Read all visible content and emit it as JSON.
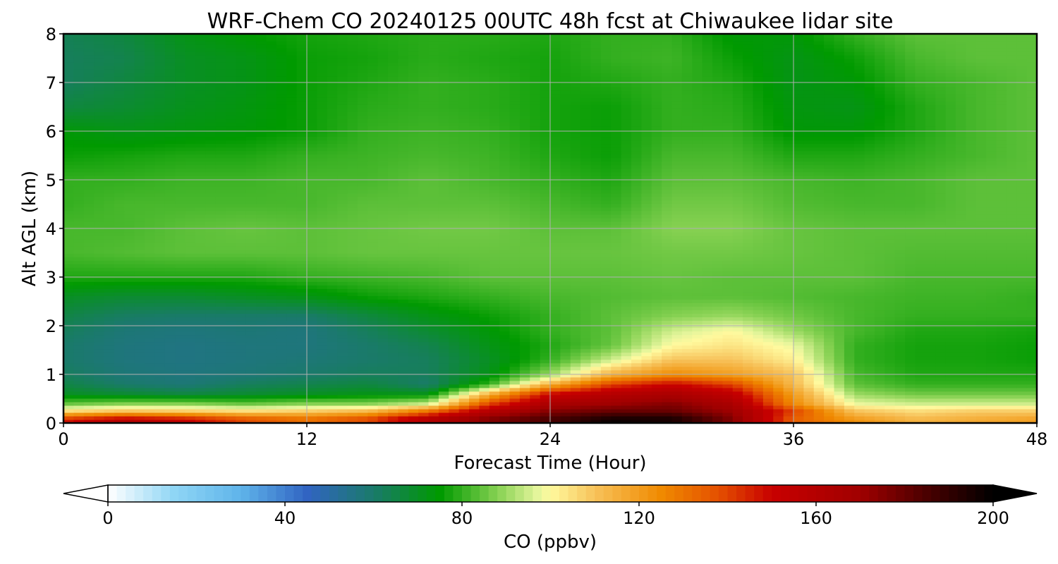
{
  "chart_data": {
    "type": "heatmap",
    "title": "WRF-Chem CO  20240125 00UTC 48h fcst at Chiwaukee lidar site",
    "xlabel": "Forecast Time (Hour)",
    "ylabel": "Alt AGL (km)",
    "xlim": [
      0,
      48
    ],
    "ylim": [
      0,
      8
    ],
    "xticks": [
      "0",
      "12",
      "24",
      "36",
      "48"
    ],
    "yticks": [
      "0",
      "1",
      "2",
      "3",
      "4",
      "5",
      "6",
      "7",
      "8"
    ],
    "grid": true,
    "x_hours": [
      0,
      3,
      6,
      9,
      12,
      15,
      18,
      21,
      24,
      27,
      30,
      33,
      36,
      39,
      42,
      45,
      48
    ],
    "z_km": [
      0,
      0.1,
      0.25,
      0.4,
      0.6,
      0.8,
      1.0,
      1.3,
      1.6,
      1.9,
      2.2,
      2.6,
      3.0,
      3.5,
      4.0,
      4.5,
      5.0,
      5.5,
      6.0,
      6.5,
      7.0,
      7.5,
      8.0
    ],
    "values_ppbv": [
      [
        150,
        165,
        155,
        140,
        130,
        138,
        160,
        175,
        185,
        200,
        195,
        175,
        135,
        125,
        115,
        118,
        120
      ],
      [
        140,
        150,
        145,
        135,
        130,
        138,
        160,
        175,
        185,
        195,
        195,
        175,
        135,
        120,
        112,
        115,
        118
      ],
      [
        105,
        110,
        108,
        105,
        108,
        112,
        130,
        160,
        175,
        180,
        180,
        170,
        140,
        110,
        105,
        108,
        108
      ],
      [
        85,
        88,
        88,
        85,
        88,
        88,
        95,
        140,
        165,
        170,
        175,
        165,
        125,
        98,
        95,
        95,
        95
      ],
      [
        70,
        68,
        66,
        68,
        70,
        72,
        72,
        115,
        150,
        160,
        165,
        155,
        120,
        90,
        86,
        86,
        86
      ],
      [
        65,
        60,
        58,
        62,
        64,
        66,
        60,
        80,
        115,
        140,
        150,
        140,
        112,
        84,
        80,
        80,
        80
      ],
      [
        62,
        58,
        57,
        58,
        60,
        62,
        62,
        72,
        90,
        115,
        125,
        120,
        110,
        82,
        78,
        78,
        78
      ],
      [
        60,
        57,
        56,
        57,
        58,
        60,
        62,
        70,
        80,
        95,
        110,
        110,
        102,
        80,
        77,
        77,
        76
      ],
      [
        60,
        57,
        56,
        57,
        57,
        60,
        64,
        72,
        78,
        85,
        100,
        104,
        98,
        80,
        77,
        77,
        76
      ],
      [
        62,
        58,
        57,
        58,
        57,
        62,
        68,
        74,
        80,
        84,
        95,
        100,
        90,
        82,
        78,
        78,
        77
      ],
      [
        65,
        61,
        60,
        60,
        60,
        66,
        72,
        76,
        80,
        84,
        88,
        90,
        86,
        82,
        80,
        80,
        80
      ],
      [
        70,
        68,
        68,
        70,
        72,
        76,
        78,
        80,
        82,
        83,
        84,
        84,
        83,
        82,
        81,
        81,
        80
      ],
      [
        78,
        78,
        78,
        78,
        80,
        81,
        82,
        84,
        84,
        84,
        85,
        84,
        84,
        84,
        82,
        82,
        82
      ],
      [
        82,
        83,
        84,
        84,
        84,
        85,
        85,
        85,
        85,
        85,
        86,
        86,
        85,
        84,
        83,
        83,
        83
      ],
      [
        82,
        82,
        84,
        85,
        84,
        85,
        86,
        86,
        84,
        84,
        88,
        88,
        85,
        84,
        84,
        84,
        84
      ],
      [
        80,
        82,
        82,
        82,
        82,
        84,
        84,
        84,
        82,
        80,
        86,
        86,
        83,
        82,
        82,
        84,
        84
      ],
      [
        80,
        80,
        81,
        81,
        82,
        82,
        84,
        82,
        80,
        78,
        84,
        84,
        82,
        81,
        82,
        84,
        84
      ],
      [
        76,
        77,
        78,
        78,
        80,
        81,
        82,
        81,
        78,
        76,
        82,
        82,
        78,
        78,
        80,
        82,
        84
      ],
      [
        74,
        72,
        73,
        74,
        76,
        80,
        81,
        80,
        77,
        76,
        80,
        80,
        74,
        74,
        78,
        82,
        84
      ],
      [
        66,
        68,
        71,
        73,
        76,
        79,
        80,
        79,
        77,
        76,
        80,
        79,
        73,
        72,
        78,
        82,
        84
      ],
      [
        62,
        66,
        70,
        72,
        76,
        78,
        80,
        79,
        77,
        78,
        80,
        78,
        72,
        74,
        80,
        82,
        84
      ],
      [
        62,
        64,
        70,
        72,
        76,
        77,
        79,
        78,
        77,
        80,
        81,
        76,
        72,
        76,
        82,
        84,
        84
      ],
      [
        63,
        66,
        72,
        75,
        77,
        78,
        79,
        79,
        78,
        80,
        80,
        74,
        74,
        80,
        84,
        84,
        84
      ]
    ],
    "colorbar": {
      "label": "CO  (ppbv)",
      "ticks": [
        "0",
        "40",
        "80",
        "120",
        "160",
        "200"
      ],
      "min": 0,
      "max": 200,
      "extend": "both",
      "stops": [
        {
          "v": 0,
          "c": "#ffffff"
        },
        {
          "v": 15,
          "c": "#8fd6f5"
        },
        {
          "v": 30,
          "c": "#5fb4ea"
        },
        {
          "v": 45,
          "c": "#3164c2"
        },
        {
          "v": 60,
          "c": "#1a7a6a"
        },
        {
          "v": 75,
          "c": "#009a00"
        },
        {
          "v": 88,
          "c": "#86d152"
        },
        {
          "v": 97,
          "c": "#e4f59b"
        },
        {
          "v": 100,
          "c": "#fff99e"
        },
        {
          "v": 110,
          "c": "#f7c25a"
        },
        {
          "v": 125,
          "c": "#f08a00"
        },
        {
          "v": 138,
          "c": "#e45000"
        },
        {
          "v": 150,
          "c": "#c80000"
        },
        {
          "v": 170,
          "c": "#a00000"
        },
        {
          "v": 185,
          "c": "#4a0000"
        },
        {
          "v": 200,
          "c": "#000000"
        }
      ]
    }
  }
}
